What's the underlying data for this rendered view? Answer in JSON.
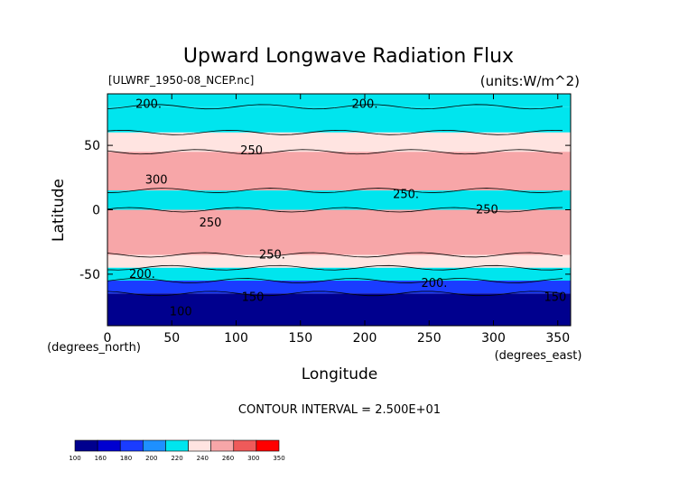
{
  "chart_data": {
    "type": "heatmap",
    "title": "Upward Longwave Radiation Flux",
    "source_label": "[ULWRF_1950-08_NCEP.nc]",
    "units_label": "(units:W/m^2)",
    "xlabel": "Longitude",
    "ylabel": "Latitude",
    "x_unit_label": "(degrees_east)",
    "y_unit_label": "(degrees_north)",
    "xlim": [
      0,
      360
    ],
    "ylim": [
      -90,
      90
    ],
    "x_ticks": [
      "0",
      "50",
      "100",
      "150",
      "200",
      "250",
      "300",
      "350"
    ],
    "y_ticks": [
      "50",
      "0",
      "-50"
    ],
    "contour_interval_label": "CONTOUR INTERVAL = 2.500E+01",
    "contour_labels": [
      {
        "text": "200.",
        "x": 32,
        "y": 82
      },
      {
        "text": "200.",
        "x": 200,
        "y": 82
      },
      {
        "text": "250",
        "x": 112,
        "y": 46
      },
      {
        "text": "300",
        "x": 38,
        "y": 23
      },
      {
        "text": "250.",
        "x": 232,
        "y": 12
      },
      {
        "text": "250",
        "x": 295,
        "y": 0
      },
      {
        "text": "250",
        "x": 80,
        "y": -10
      },
      {
        "text": "250.",
        "x": 128,
        "y": -35
      },
      {
        "text": "200.",
        "x": 27,
        "y": -50
      },
      {
        "text": "200.",
        "x": 254,
        "y": -57
      },
      {
        "text": "150",
        "x": 113,
        "y": -68
      },
      {
        "text": "100",
        "x": 57,
        "y": -79
      },
      {
        "text": "150",
        "x": 348,
        "y": -68
      }
    ],
    "colorbar": {
      "levels": [
        "100",
        "160",
        "180",
        "200",
        "220",
        "240",
        "260",
        "300",
        "350"
      ],
      "colors": [
        "#00008e",
        "#0000d0",
        "#1a3cff",
        "#1e90ff",
        "#00e5ee",
        "#ffe4e1",
        "#f7a6a8",
        "#ef5a5a",
        "#ff0000"
      ]
    },
    "field_bands": [
      {
        "lat": [
          80,
          90
        ],
        "value": 220
      },
      {
        "lat": [
          60,
          80
        ],
        "value": 230
      },
      {
        "lat": [
          45,
          60
        ],
        "value": 240
      },
      {
        "lat": [
          15,
          45
        ],
        "value": 275
      },
      {
        "lat": [
          0,
          15
        ],
        "value": 220
      },
      {
        "lat": [
          -35,
          0
        ],
        "value": 270
      },
      {
        "lat": [
          -45,
          -35
        ],
        "value": 240
      },
      {
        "lat": [
          -55,
          -45
        ],
        "value": 220
      },
      {
        "lat": [
          -65,
          -55
        ],
        "value": 190
      },
      {
        "lat": [
          -90,
          -65
        ],
        "value": 140
      }
    ]
  }
}
